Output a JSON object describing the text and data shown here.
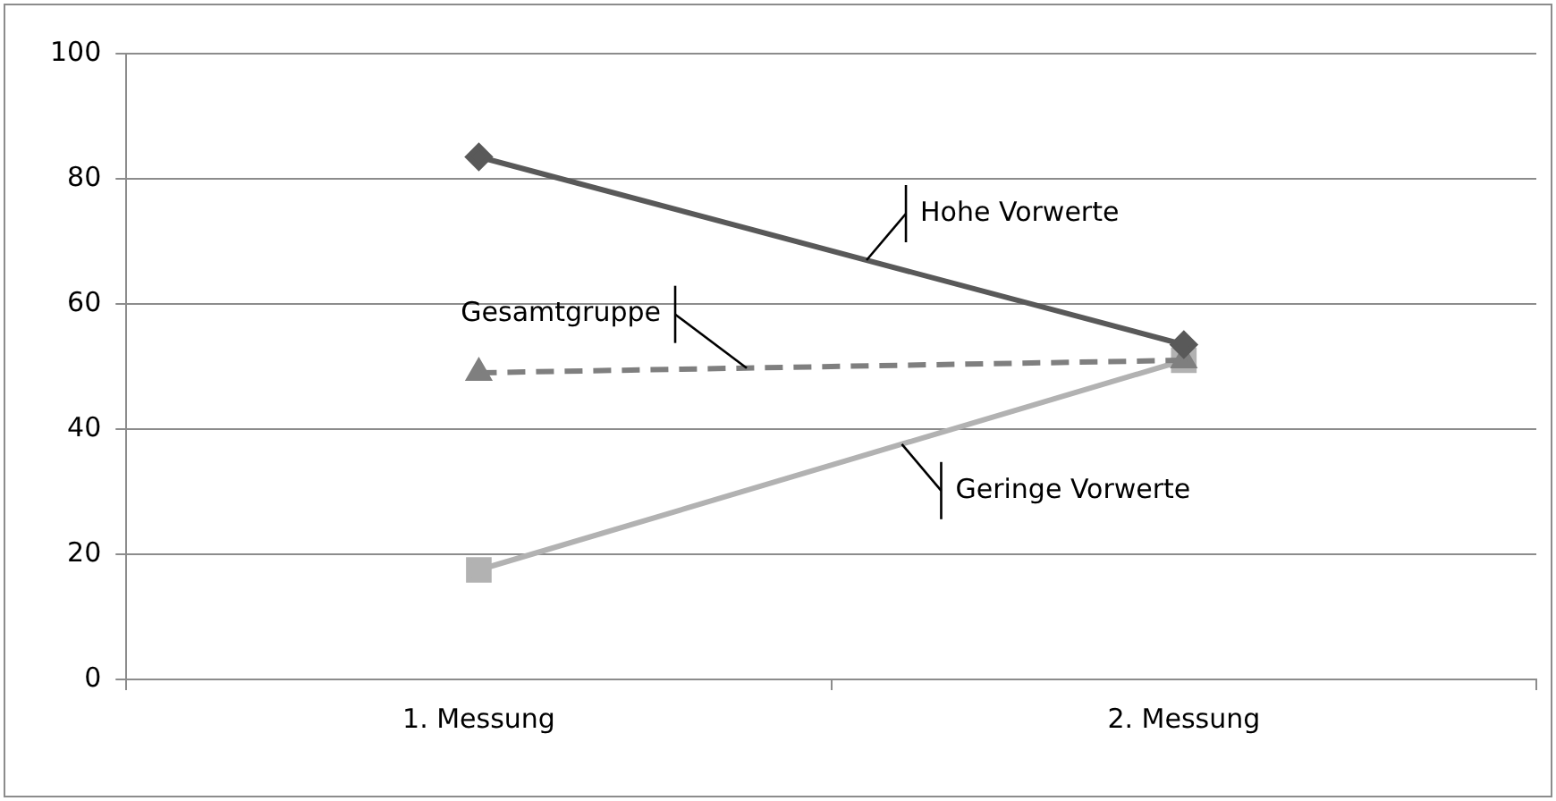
{
  "chart_data": {
    "type": "line",
    "categories": [
      "1. Messung",
      "2. Messung"
    ],
    "series": [
      {
        "name": "Hohe Vorwerte",
        "color": "#595959",
        "values": [
          83.5,
          53.5
        ],
        "marker": "diamond",
        "line_style": "solid"
      },
      {
        "name": "Gesamtgruppe",
        "color": "#7f7f7f",
        "values": [
          49,
          51
        ],
        "marker": "triangle",
        "line_style": "dashed"
      },
      {
        "name": "Geringe Vorwerte",
        "color": "#b2b2b2",
        "values": [
          17.5,
          51
        ],
        "marker": "square",
        "line_style": "solid"
      }
    ],
    "ylim": [
      0,
      100
    ],
    "yticks": [
      0,
      20,
      40,
      60,
      80,
      100
    ],
    "grid": "y",
    "legend": false
  }
}
